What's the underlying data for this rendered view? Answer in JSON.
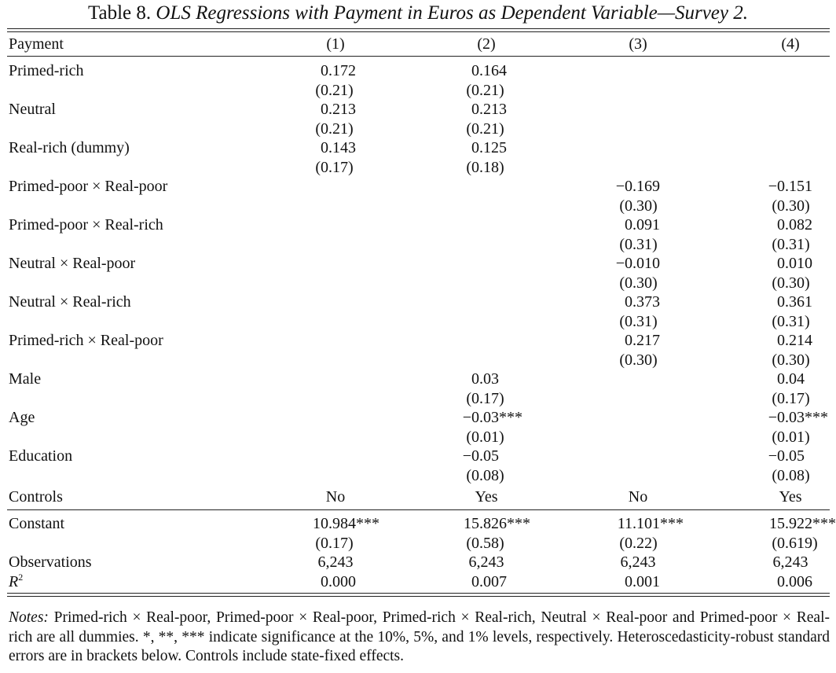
{
  "table": {
    "number": "Table 8.",
    "title": "OLS Regressions with Payment in Euros as Dependent Variable—Survey 2.",
    "stub_header": "Payment",
    "columns": [
      "(1)",
      "(2)",
      "(3)",
      "(4)"
    ],
    "rows": [
      {
        "label": "Primed-rich",
        "coef": [
          "0.172",
          "0.164",
          "",
          ""
        ],
        "se": [
          "(0.21)",
          "(0.21)",
          "",
          ""
        ]
      },
      {
        "label": "Neutral",
        "coef": [
          "0.213",
          "0.213",
          "",
          ""
        ],
        "se": [
          "(0.21)",
          "(0.21)",
          "",
          ""
        ]
      },
      {
        "label": "Real-rich (dummy)",
        "coef": [
          "0.143",
          "0.125",
          "",
          ""
        ],
        "se": [
          "(0.17)",
          "(0.18)",
          "",
          ""
        ]
      },
      {
        "label": "Primed-poor × Real-poor",
        "coef": [
          "",
          "",
          "−0.169",
          "−0.151"
        ],
        "se": [
          "",
          "",
          "(0.30)",
          "(0.30)"
        ]
      },
      {
        "label": "Primed-poor × Real-rich",
        "coef": [
          "",
          "",
          "0.091",
          "0.082"
        ],
        "se": [
          "",
          "",
          "(0.31)",
          "(0.31)"
        ]
      },
      {
        "label": "Neutral × Real-poor",
        "coef": [
          "",
          "",
          "−0.010",
          "0.010"
        ],
        "se": [
          "",
          "",
          "(0.30)",
          "(0.30)"
        ]
      },
      {
        "label": "Neutral × Real-rich",
        "coef": [
          "",
          "",
          "0.373",
          "0.361"
        ],
        "se": [
          "",
          "",
          "(0.31)",
          "(0.31)"
        ]
      },
      {
        "label": "Primed-rich × Real-poor",
        "coef": [
          "",
          "",
          "0.217",
          "0.214"
        ],
        "se": [
          "",
          "",
          "(0.30)",
          "(0.30)"
        ]
      },
      {
        "label": "Male",
        "coef": [
          "",
          "0.03",
          "",
          "0.04"
        ],
        "se": [
          "",
          "(0.17)",
          "",
          "(0.17)"
        ]
      },
      {
        "label": "Age",
        "coef": [
          "",
          "−0.03***",
          "",
          "−0.03***"
        ],
        "se": [
          "",
          "(0.01)",
          "",
          "(0.01)"
        ]
      },
      {
        "label": "Education",
        "coef": [
          "",
          "−0.05",
          "",
          "−0.05"
        ],
        "se": [
          "",
          "(0.08)",
          "",
          "(0.08)"
        ]
      }
    ],
    "controls": {
      "label": "Controls",
      "values": [
        "No",
        "Yes",
        "No",
        "Yes"
      ]
    },
    "constant": {
      "label": "Constant",
      "coef": [
        "10.984***",
        "15.826***",
        "11.101***",
        "15.922***"
      ],
      "se": [
        "(0.17)",
        "(0.58)",
        "(0.22)",
        "(0.619)"
      ]
    },
    "observations": {
      "label": "Observations",
      "values": [
        "6,243",
        "6,243",
        "6,243",
        "6,243"
      ]
    },
    "r2": {
      "label": "R",
      "superscript": "2",
      "values": [
        "0.000",
        "0.007",
        "0.001",
        "0.006"
      ]
    }
  },
  "notes": {
    "lead": "Notes:",
    "text": " Primed-rich × Real-poor, Primed-poor × Real-poor, Primed-rich × Real-rich, Neutral × Real-poor and Primed-poor × Real-rich are all dummies. *, **, *** indicate significance at the 10%, 5%, and 1% levels, respectively. Heteroscedasticity-robust standard errors are in brackets below. Controls include state-fixed effects."
  }
}
